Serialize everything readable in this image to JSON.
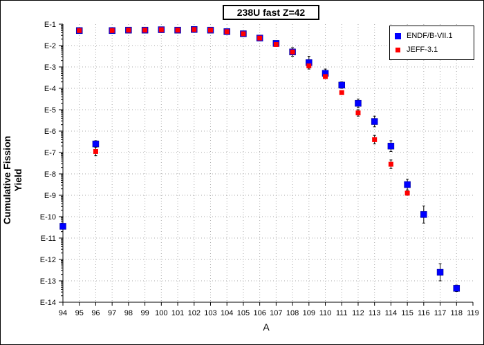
{
  "chart_data": {
    "type": "scatter",
    "title": "238U fast Z=42",
    "xlabel": "A",
    "ylabel": "Cumulative Fission Yield",
    "xlim": [
      94,
      119
    ],
    "ylim_log10": [
      -14,
      -1
    ],
    "log_y": true,
    "grid": true,
    "legend_position": "top-right",
    "x_ticks": [
      "94",
      "95",
      "96",
      "97",
      "98",
      "99",
      "100",
      "101",
      "102",
      "103",
      "104",
      "105",
      "106",
      "107",
      "108",
      "109",
      "110",
      "111",
      "112",
      "113",
      "114",
      "115",
      "116",
      "117",
      "118",
      "119"
    ],
    "y_ticks": [
      "E-1",
      "E-2",
      "E-3",
      "E-4",
      "E-5",
      "E-6",
      "E-7",
      "E-8",
      "E-9",
      "E-10",
      "E-11",
      "E-12",
      "E-13",
      "E-14"
    ],
    "series": [
      {
        "name": "ENDF/B-VII.1",
        "color": "#0000ff",
        "marker": "square",
        "x": [
          94,
          95,
          96,
          97,
          98,
          99,
          100,
          101,
          102,
          103,
          104,
          105,
          106,
          107,
          108,
          109,
          110,
          111,
          112,
          113,
          114,
          115,
          116,
          117,
          118
        ],
        "log10_y": [
          -10.45,
          -1.3,
          -6.6,
          -1.3,
          -1.28,
          -1.28,
          -1.26,
          -1.28,
          -1.25,
          -1.28,
          -1.35,
          -1.45,
          -1.65,
          -1.9,
          -2.3,
          -2.8,
          -3.3,
          -3.85,
          -4.7,
          -5.55,
          -6.7,
          -8.5,
          -9.9,
          -12.6,
          -13.35
        ],
        "err_log10": [
          0,
          0.05,
          0.15,
          0.05,
          0.05,
          0.05,
          0.05,
          0.05,
          0.05,
          0.05,
          0.05,
          0.05,
          0.05,
          0.1,
          0.2,
          0.3,
          0.2,
          0.15,
          0.2,
          0.25,
          0.25,
          0.25,
          0.4,
          0.4,
          0.15
        ]
      },
      {
        "name": "JEFF-3.1",
        "color": "#ff0000",
        "marker": "square",
        "x": [
          95,
          96,
          97,
          98,
          99,
          100,
          101,
          102,
          103,
          104,
          105,
          106,
          107,
          108,
          109,
          110,
          111,
          112,
          113,
          114,
          115
        ],
        "log10_y": [
          -1.3,
          -6.95,
          -1.3,
          -1.28,
          -1.28,
          -1.26,
          -1.28,
          -1.25,
          -1.28,
          -1.35,
          -1.45,
          -1.65,
          -1.95,
          -2.3,
          -2.95,
          -3.45,
          -4.2,
          -5.15,
          -6.4,
          -7.55,
          -8.9
        ],
        "err_log10": [
          0,
          0.2,
          0,
          0,
          0,
          0,
          0,
          0,
          0,
          0,
          0,
          0,
          0,
          0,
          0,
          0,
          0,
          0.15,
          0.2,
          0.2,
          0.1
        ]
      }
    ]
  }
}
